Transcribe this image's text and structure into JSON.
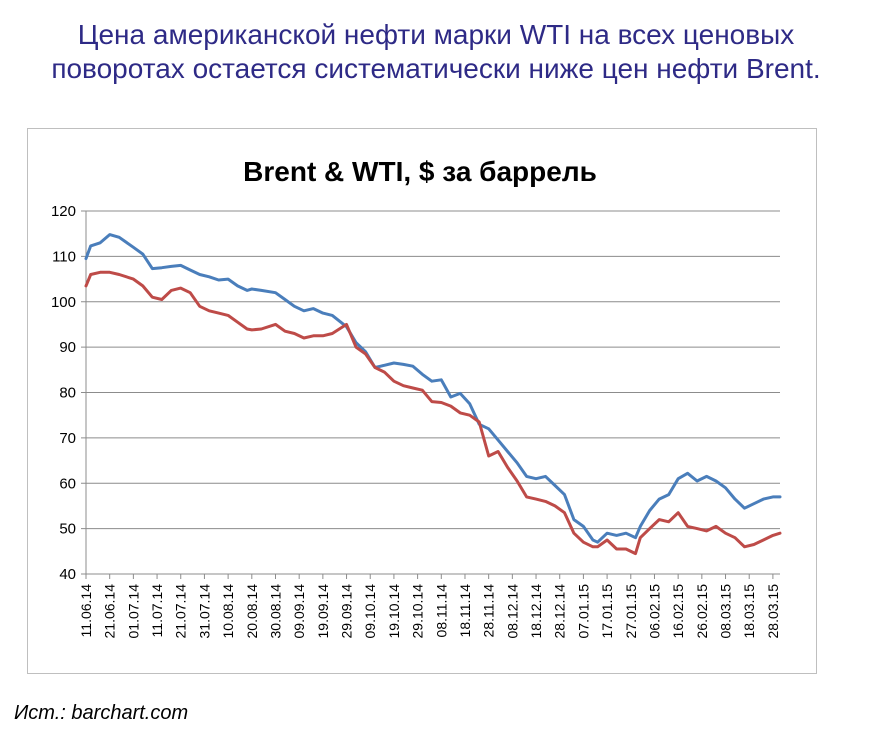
{
  "headline": {
    "line1": "Цена американской нефти марки WTI на всех ценовых",
    "line2": "поворотах остается систематически ниже цен нефти Brent."
  },
  "source": "Ист.: barchart.com",
  "colors": {
    "brent": "#4a7ebb",
    "wti": "#be4b48",
    "headline": "#2e2a86"
  },
  "chart_data": {
    "type": "line",
    "title": "Brent & WTI, $ за баррель",
    "ylim": [
      40,
      120
    ],
    "y_ticks": [
      40,
      50,
      60,
      70,
      80,
      90,
      100,
      110,
      120
    ],
    "grid": true,
    "legend": "none",
    "x_tick_labels": [
      "11.06.14",
      "21.06.14",
      "01.07.14",
      "11.07.14",
      "21.07.14",
      "31.07.14",
      "10.08.14",
      "20.08.14",
      "30.08.14",
      "09.09.14",
      "19.09.14",
      "29.09.14",
      "09.10.14",
      "19.10.14",
      "29.10.14",
      "08.11.14",
      "18.11.14",
      "28.11.14",
      "08.12.14",
      "18.12.14",
      "28.12.14",
      "07.01.15",
      "17.01.15",
      "27.01.15",
      "06.02.15",
      "16.02.15",
      "26.02.15",
      "08.03.15",
      "18.03.15",
      "28.03.15"
    ],
    "x": [
      "11.06.14",
      "13.06.14",
      "17.06.14",
      "21.06.14",
      "25.06.14",
      "01.07.14",
      "05.07.14",
      "09.07.14",
      "13.07.14",
      "17.07.14",
      "21.07.14",
      "25.07.14",
      "29.07.14",
      "02.08.14",
      "06.08.14",
      "10.08.14",
      "14.08.14",
      "18.08.14",
      "20.08.14",
      "24.08.14",
      "30.08.14",
      "03.09.14",
      "07.09.14",
      "11.09.14",
      "15.09.14",
      "19.09.14",
      "23.09.14",
      "29.09.14",
      "03.10.14",
      "07.10.14",
      "11.10.14",
      "15.10.14",
      "19.10.14",
      "23.10.14",
      "27.10.14",
      "31.10.14",
      "04.11.14",
      "08.11.14",
      "12.11.14",
      "16.11.14",
      "20.11.14",
      "24.11.14",
      "28.11.14",
      "02.12.14",
      "06.12.14",
      "10.12.14",
      "14.12.14",
      "18.12.14",
      "22.12.14",
      "26.12.14",
      "30.12.14",
      "03.01.15",
      "07.01.15",
      "11.01.15",
      "13.01.15",
      "17.01.15",
      "21.01.15",
      "25.01.15",
      "29.01.15",
      "31.01.15",
      "04.02.15",
      "08.02.15",
      "12.02.15",
      "16.02.15",
      "20.02.15",
      "24.02.15",
      "28.02.15",
      "04.03.15",
      "08.03.15",
      "12.03.15",
      "16.03.15",
      "20.03.15",
      "24.03.15",
      "28.03.15",
      "31.03.15"
    ],
    "series": [
      {
        "name": "Brent",
        "color": "#4a7ebb",
        "values": [
          109.5,
          112.3,
          113.0,
          114.8,
          114.2,
          112.0,
          110.5,
          107.3,
          107.5,
          107.8,
          108.0,
          107.0,
          106.0,
          105.5,
          104.8,
          105.0,
          103.5,
          102.5,
          102.8,
          102.5,
          102.0,
          100.5,
          99.0,
          98.0,
          98.5,
          97.5,
          97.0,
          94.5,
          91.0,
          89.0,
          85.5,
          86.0,
          86.5,
          86.2,
          85.8,
          84.0,
          82.5,
          82.8,
          79.0,
          79.8,
          77.5,
          73.0,
          72.0,
          69.5,
          67.0,
          64.5,
          61.5,
          61.0,
          61.5,
          59.5,
          57.5,
          52.0,
          50.5,
          47.5,
          47.0,
          49.0,
          48.5,
          49.0,
          48.0,
          50.5,
          54.0,
          56.5,
          57.5,
          61.0,
          62.2,
          60.5,
          61.5,
          60.5,
          59.0,
          56.5,
          54.5,
          55.5,
          56.5,
          57.0,
          57.0
        ]
      },
      {
        "name": "WTI",
        "color": "#be4b48",
        "values": [
          103.5,
          106.0,
          106.5,
          106.5,
          106.0,
          105.0,
          103.5,
          101.0,
          100.5,
          102.5,
          103.0,
          102.0,
          99.0,
          98.0,
          97.5,
          97.0,
          95.5,
          94.0,
          93.8,
          94.0,
          95.0,
          93.5,
          93.0,
          92.0,
          92.5,
          92.5,
          93.0,
          95.0,
          90.0,
          88.5,
          85.5,
          84.5,
          82.5,
          81.5,
          81.0,
          80.5,
          78.0,
          77.8,
          77.0,
          75.5,
          75.0,
          73.5,
          66.0,
          67.0,
          63.5,
          60.5,
          57.0,
          56.5,
          56.0,
          55.0,
          53.5,
          49.0,
          47.0,
          46.0,
          46.0,
          47.5,
          45.5,
          45.5,
          44.5,
          48.0,
          50.0,
          52.0,
          51.5,
          53.5,
          50.5,
          50.0,
          49.5,
          50.5,
          49.0,
          48.0,
          46.0,
          46.5,
          47.5,
          48.5,
          49.0
        ]
      }
    ]
  }
}
